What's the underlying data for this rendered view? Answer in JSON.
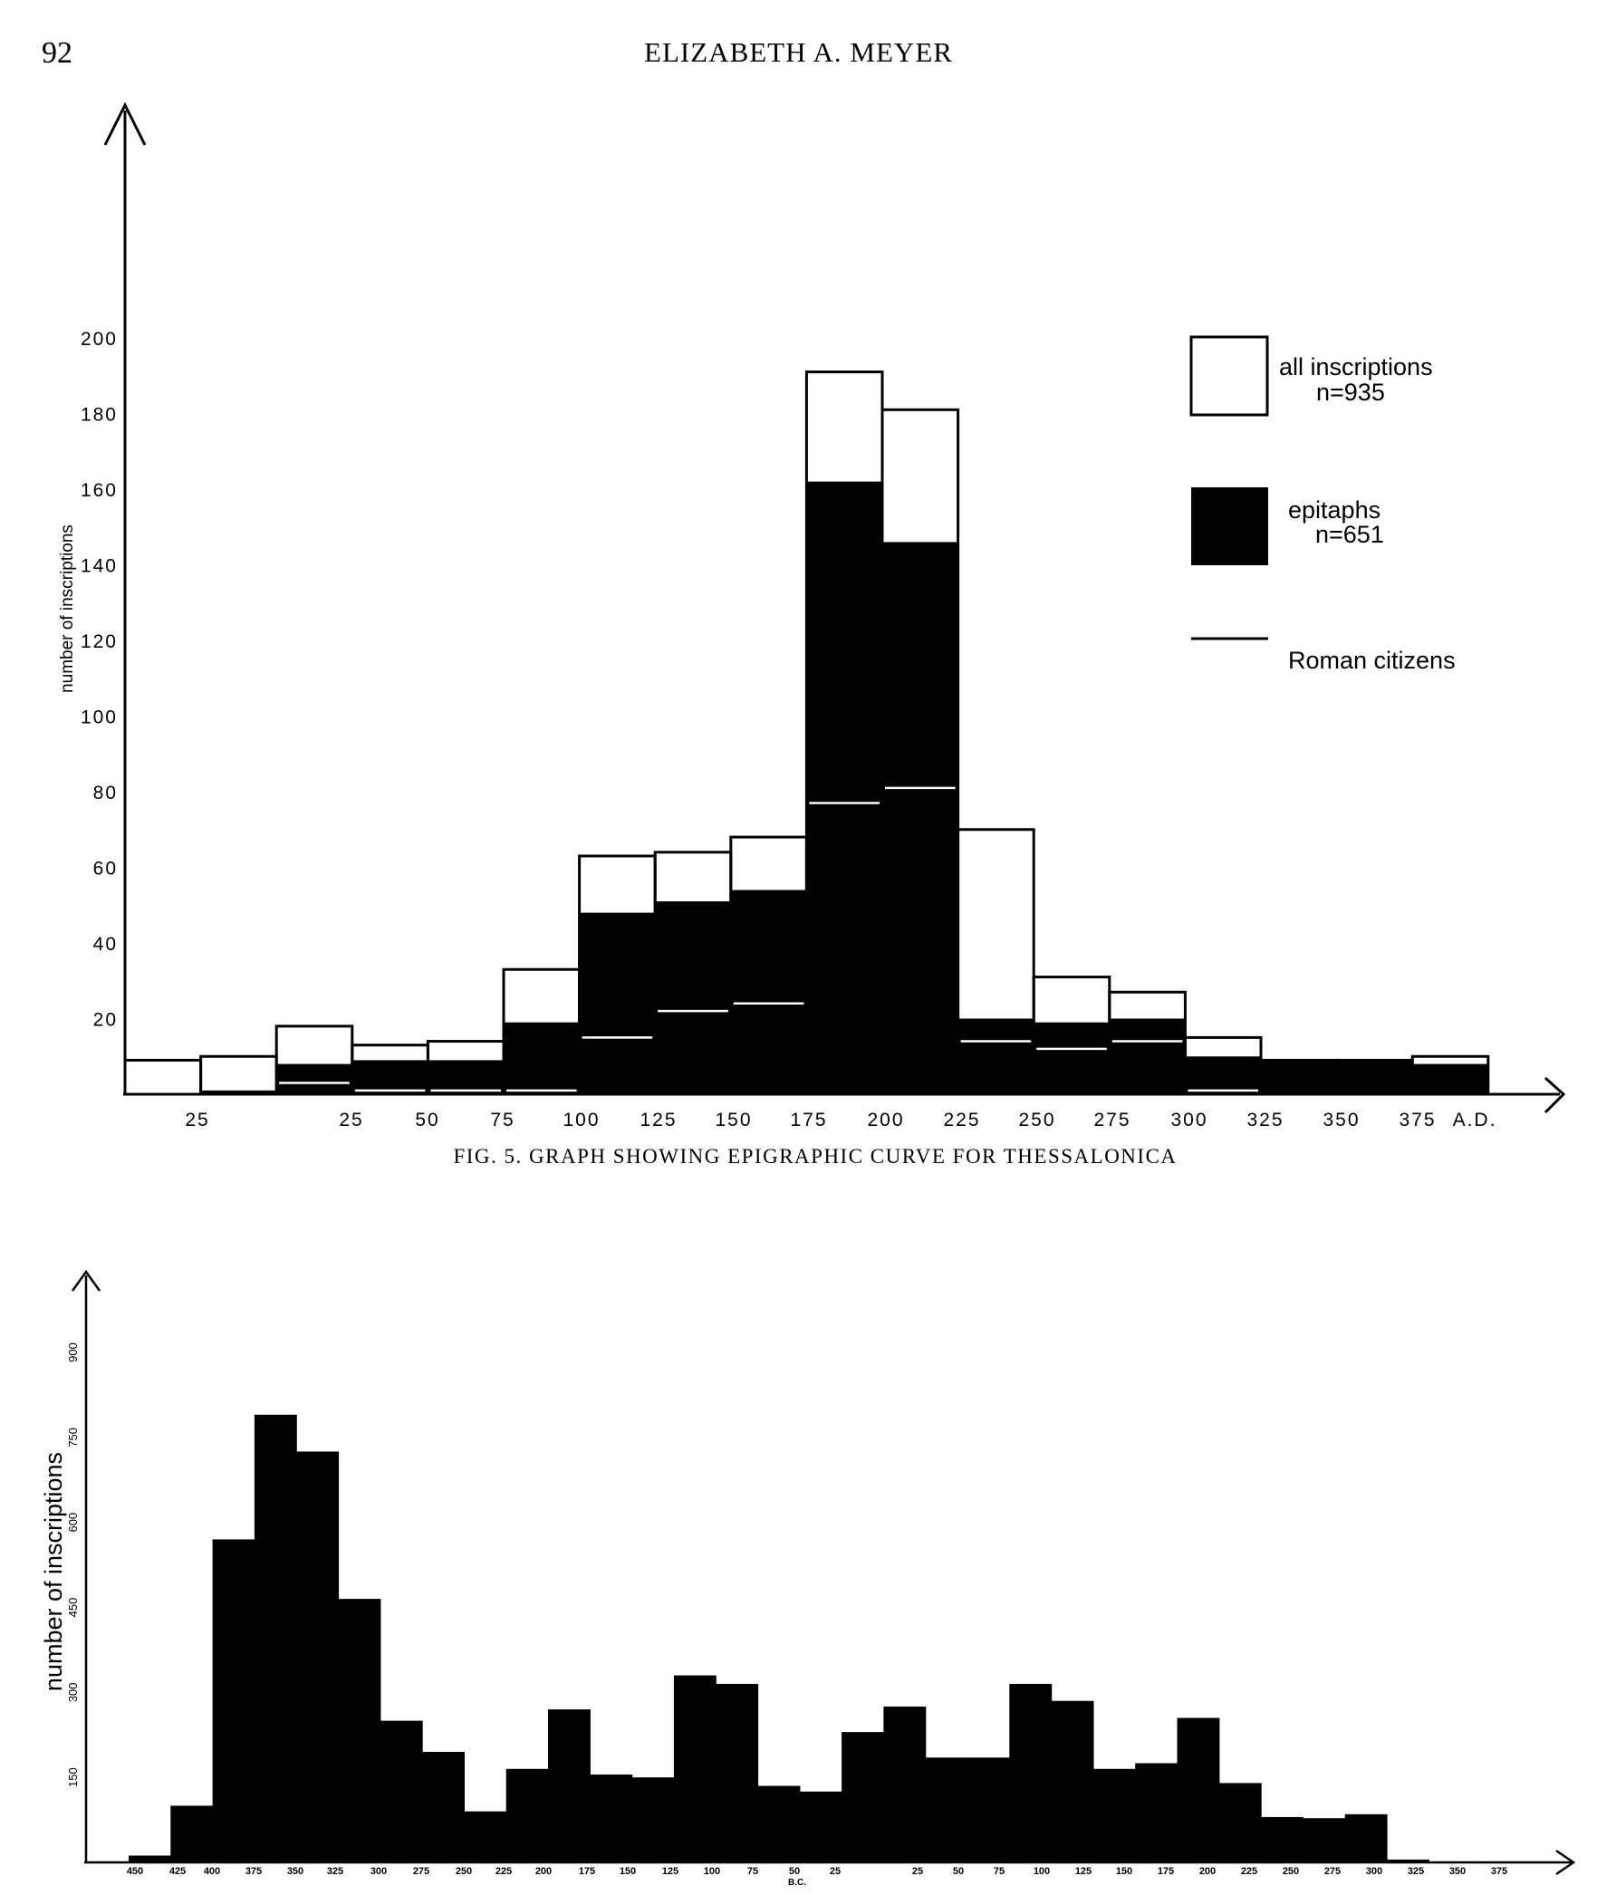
{
  "page": {
    "number": "92",
    "running_head": "ELIZABETH A. MEYER"
  },
  "figure5": {
    "caption": "FIG. 5. GRAPH SHOWING EPIGRAPHIC CURVE FOR THESSALONICA"
  },
  "chart_data": [
    {
      "type": "bar",
      "title": "",
      "ylabel": "number of inscriptions",
      "xlabel": "",
      "ylim": [
        0,
        200
      ],
      "yticks": [
        20,
        40,
        60,
        80,
        100,
        120,
        140,
        160,
        180,
        200
      ],
      "xtick_labels": [
        "25",
        "25",
        "50",
        "75",
        "100",
        "125",
        "150",
        "175",
        "200",
        "225",
        "250",
        "275",
        "300",
        "325",
        "350",
        "375",
        "A.D."
      ],
      "categories": [
        "50-25 B.C.",
        "25-1 B.C.",
        "1-25",
        "25-50",
        "50-75",
        "75-100",
        "100-125",
        "125-150",
        "150-175",
        "175-200",
        "200-225",
        "225-250",
        "250-275",
        "275-300",
        "300-325",
        "325-350",
        "350-375",
        "375-400"
      ],
      "series": [
        {
          "name": "all inscriptions",
          "n_label": "n=935",
          "style": "outline",
          "values": [
            9,
            10,
            18,
            13,
            14,
            33,
            63,
            64,
            68,
            191,
            181,
            70,
            31,
            27,
            15,
            9,
            9,
            10
          ]
        },
        {
          "name": "epitaphs",
          "n_label": "n=651",
          "style": "filled",
          "values": [
            0,
            1,
            8,
            9,
            9,
            19,
            48,
            51,
            54,
            162,
            146,
            20,
            19,
            20,
            10,
            9,
            9,
            8
          ]
        },
        {
          "name": "Roman citizens",
          "style": "line",
          "values": [
            0,
            0,
            3,
            1,
            1,
            1,
            15,
            22,
            24,
            77,
            81,
            14,
            12,
            14,
            1,
            0,
            0,
            0
          ]
        }
      ],
      "legend_position": "top-right",
      "grid": false
    },
    {
      "type": "bar",
      "title": "",
      "ylabel": "number of inscriptions",
      "xlabel": "",
      "ylim": [
        0,
        900
      ],
      "yticks": [
        150,
        300,
        450,
        600,
        750,
        900
      ],
      "xtick_labels": [
        "450",
        "425",
        "400",
        "375",
        "350",
        "325",
        "300",
        "275",
        "250",
        "225",
        "200",
        "175",
        "150",
        "125",
        "100",
        "75",
        "50",
        "25",
        "B.C.",
        "25",
        "50",
        "75",
        "100",
        "125",
        "150",
        "175",
        "200",
        "225",
        "250",
        "275",
        "300",
        "325",
        "350",
        "375"
      ],
      "categories": [
        "450-425 B.C.",
        "425-400 B.C.",
        "400-375 B.C.",
        "375-350 B.C.",
        "350-325 B.C.",
        "325-300 B.C.",
        "300-275 B.C.",
        "275-250 B.C.",
        "250-225 B.C.",
        "225-200 B.C.",
        "200-175 B.C.",
        "175-150 B.C.",
        "150-125 B.C.",
        "125-100 B.C.",
        "100-75 B.C.",
        "75-50 B.C.",
        "50-25 B.C.",
        "25-1 B.C.",
        "1-25",
        "25-50",
        "50-75",
        "75-100",
        "100-125",
        "125-150",
        "150-175",
        "175-200",
        "200-225",
        "225-250",
        "250-275",
        "275-300",
        "300-325",
        "325-350",
        "350-375",
        "375-400"
      ],
      "values": [
        12,
        100,
        570,
        790,
        725,
        465,
        250,
        195,
        90,
        165,
        270,
        155,
        150,
        330,
        315,
        135,
        125,
        230,
        275,
        185,
        185,
        315,
        285,
        165,
        175,
        255,
        140,
        80,
        78,
        85,
        5,
        0,
        0,
        0
      ],
      "grid": false
    }
  ]
}
